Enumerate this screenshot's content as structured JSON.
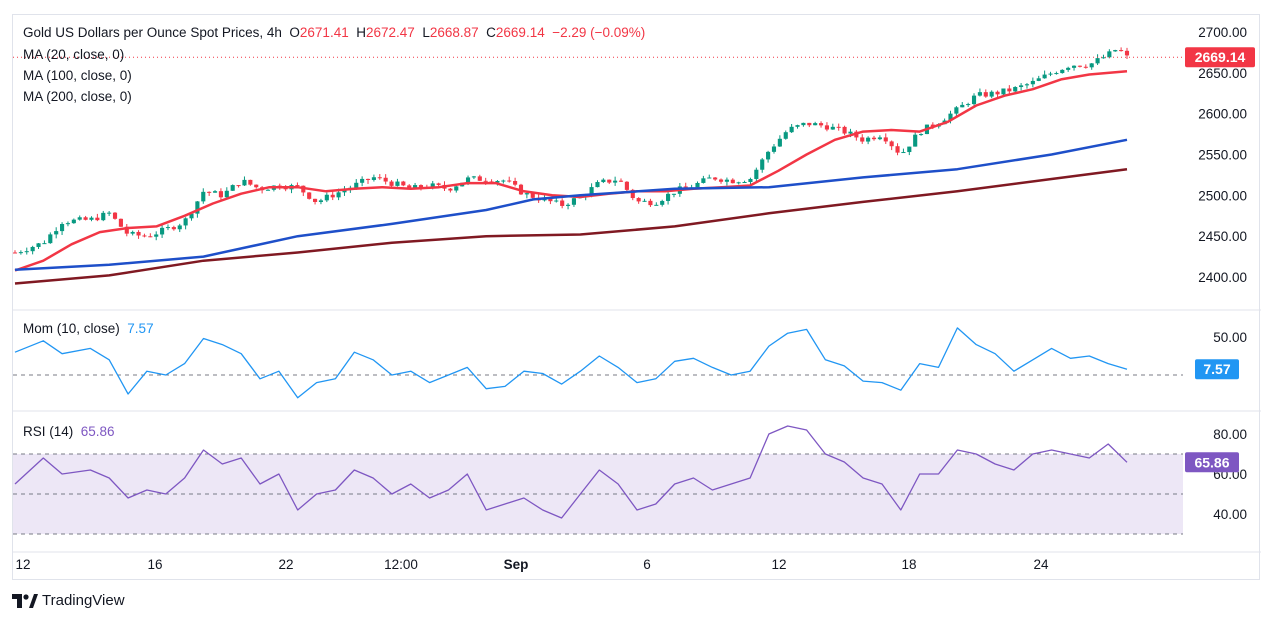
{
  "header": {
    "title": "Gold US Dollars per Ounce Spot Prices, 4h",
    "o_label": "O",
    "o_value": "2671.41",
    "h_label": "H",
    "h_value": "2672.47",
    "l_label": "L",
    "l_value": "2668.87",
    "c_label": "C",
    "c_value": "2669.14",
    "change": "−2.29 (−0.09%)"
  },
  "indicators": {
    "ma20": "MA (20, close, 0)",
    "ma100": "MA (100, close, 0)",
    "ma200": "MA (200, close, 0)",
    "mom_label": "Mom (10, close)",
    "mom_value": "7.57",
    "rsi_label": "RSI (14)",
    "rsi_value": "65.86"
  },
  "price_badge": "2669.14",
  "mom_badge": "7.57",
  "rsi_badge": "65.86",
  "colors": {
    "up": "#089981",
    "down": "#f23645",
    "ma20": "#f23645",
    "ma100": "#1e4fc9",
    "ma200": "#801922",
    "mom": "#2196f3",
    "rsi": "#7e57c2",
    "rsi_band": "#ede7f6"
  },
  "branding": "TradingView",
  "chart_data": [
    {
      "type": "candlestick",
      "title": "Gold US Dollars per Ounce Spot Prices, 4h",
      "ylim": [
        2385,
        2705
      ],
      "yticks": [
        "2700.00",
        "2650.00",
        "2600.00",
        "2550.00",
        "2500.00",
        "2450.00",
        "2400.00"
      ],
      "xticks": [
        "12",
        "16",
        "22",
        "12:00",
        "Sep",
        "6",
        "12",
        "18",
        "24"
      ],
      "last_close": 2669.14,
      "close_path": [
        [
          0,
          2430
        ],
        [
          3,
          2442
        ],
        [
          5,
          2468
        ],
        [
          8,
          2470
        ],
        [
          10,
          2478
        ],
        [
          12,
          2452
        ],
        [
          14,
          2450
        ],
        [
          16,
          2458
        ],
        [
          18,
          2468
        ],
        [
          20,
          2505
        ],
        [
          22,
          2500
        ],
        [
          24,
          2518
        ],
        [
          26,
          2508
        ],
        [
          28,
          2512
        ],
        [
          30,
          2510
        ],
        [
          32,
          2492
        ],
        [
          34,
          2502
        ],
        [
          36,
          2512
        ],
        [
          38,
          2522
        ],
        [
          40,
          2515
        ],
        [
          42,
          2508
        ],
        [
          44,
          2512
        ],
        [
          46,
          2508
        ],
        [
          48,
          2520
        ],
        [
          50,
          2520
        ],
        [
          52,
          2518
        ],
        [
          54,
          2502
        ],
        [
          56,
          2495
        ],
        [
          58,
          2488
        ],
        [
          60,
          2498
        ],
        [
          62,
          2515
        ],
        [
          64,
          2520
        ],
        [
          66,
          2492
        ],
        [
          68,
          2492
        ],
        [
          70,
          2505
        ],
        [
          72,
          2512
        ],
        [
          74,
          2522
        ],
        [
          76,
          2518
        ],
        [
          78,
          2520
        ],
        [
          80,
          2555
        ],
        [
          82,
          2580
        ],
        [
          84,
          2588
        ],
        [
          86,
          2585
        ],
        [
          88,
          2578
        ],
        [
          90,
          2568
        ],
        [
          92,
          2575
        ],
        [
          94,
          2550
        ],
        [
          96,
          2578
        ],
        [
          98,
          2590
        ],
        [
          100,
          2605
        ],
        [
          102,
          2622
        ],
        [
          104,
          2625
        ],
        [
          106,
          2630
        ],
        [
          108,
          2638
        ],
        [
          110,
          2650
        ],
        [
          112,
          2660
        ],
        [
          114,
          2660
        ],
        [
          116,
          2672
        ],
        [
          117,
          2680
        ],
        [
          118,
          2669
        ]
      ],
      "series": [
        {
          "name": "MA (20, close, 0)",
          "points": [
            [
              0,
              2408
            ],
            [
              3,
              2420
            ],
            [
              6,
              2440
            ],
            [
              9,
              2455
            ],
            [
              12,
              2460
            ],
            [
              15,
              2462
            ],
            [
              18,
              2475
            ],
            [
              21,
              2490
            ],
            [
              24,
              2502
            ],
            [
              27,
              2510
            ],
            [
              30,
              2510
            ],
            [
              33,
              2505
            ],
            [
              36,
              2508
            ],
            [
              39,
              2510
            ],
            [
              42,
              2508
            ],
            [
              45,
              2510
            ],
            [
              48,
              2515
            ],
            [
              51,
              2515
            ],
            [
              54,
              2505
            ],
            [
              57,
              2500
            ],
            [
              60,
              2498
            ],
            [
              63,
              2502
            ],
            [
              66,
              2505
            ],
            [
              69,
              2505
            ],
            [
              72,
              2508
            ],
            [
              75,
              2510
            ],
            [
              78,
              2512
            ],
            [
              81,
              2530
            ],
            [
              84,
              2550
            ],
            [
              87,
              2568
            ],
            [
              90,
              2578
            ],
            [
              93,
              2580
            ],
            [
              96,
              2578
            ],
            [
              99,
              2590
            ],
            [
              102,
              2610
            ],
            [
              105,
              2622
            ],
            [
              108,
              2630
            ],
            [
              111,
              2642
            ],
            [
              114,
              2648
            ],
            [
              118,
              2652
            ]
          ]
        },
        {
          "name": "MA (100, close, 0)",
          "points": [
            [
              0,
              2409
            ],
            [
              10,
              2415
            ],
            [
              20,
              2425
            ],
            [
              30,
              2450
            ],
            [
              40,
              2465
            ],
            [
              50,
              2482
            ],
            [
              55,
              2495
            ],
            [
              60,
              2500
            ],
            [
              70,
              2508
            ],
            [
              80,
              2510
            ],
            [
              90,
              2522
            ],
            [
              100,
              2532
            ],
            [
              110,
              2550
            ],
            [
              118,
              2568
            ]
          ]
        },
        {
          "name": "MA (200, close, 0)",
          "points": [
            [
              0,
              2392
            ],
            [
              10,
              2402
            ],
            [
              20,
              2420
            ],
            [
              30,
              2430
            ],
            [
              40,
              2442
            ],
            [
              50,
              2450
            ],
            [
              60,
              2452
            ],
            [
              70,
              2462
            ],
            [
              80,
              2478
            ],
            [
              90,
              2492
            ],
            [
              100,
              2505
            ],
            [
              110,
              2520
            ],
            [
              118,
              2532
            ]
          ]
        }
      ]
    },
    {
      "type": "line",
      "title": "Mom (10, close)",
      "yticks": [
        "50.00"
      ],
      "ylim": [
        -40,
        75
      ],
      "zero_line": 0,
      "series": [
        {
          "name": "Mom (10, close)",
          "points": [
            [
              0,
              30
            ],
            [
              3,
              45
            ],
            [
              5,
              28
            ],
            [
              8,
              35
            ],
            [
              10,
              20
            ],
            [
              12,
              -25
            ],
            [
              14,
              5
            ],
            [
              16,
              0
            ],
            [
              18,
              15
            ],
            [
              20,
              48
            ],
            [
              22,
              40
            ],
            [
              24,
              28
            ],
            [
              26,
              -5
            ],
            [
              28,
              5
            ],
            [
              30,
              -30
            ],
            [
              32,
              -10
            ],
            [
              34,
              -5
            ],
            [
              36,
              30
            ],
            [
              38,
              20
            ],
            [
              40,
              0
            ],
            [
              42,
              5
            ],
            [
              44,
              -10
            ],
            [
              46,
              0
            ],
            [
              48,
              10
            ],
            [
              50,
              -18
            ],
            [
              52,
              -15
            ],
            [
              54,
              5
            ],
            [
              56,
              2
            ],
            [
              58,
              -12
            ],
            [
              60,
              5
            ],
            [
              62,
              25
            ],
            [
              64,
              10
            ],
            [
              66,
              -10
            ],
            [
              68,
              -5
            ],
            [
              70,
              18
            ],
            [
              72,
              22
            ],
            [
              74,
              10
            ],
            [
              76,
              0
            ],
            [
              78,
              5
            ],
            [
              80,
              38
            ],
            [
              82,
              55
            ],
            [
              84,
              60
            ],
            [
              86,
              20
            ],
            [
              88,
              12
            ],
            [
              90,
              -8
            ],
            [
              92,
              -10
            ],
            [
              94,
              -20
            ],
            [
              96,
              15
            ],
            [
              98,
              10
            ],
            [
              100,
              62
            ],
            [
              102,
              40
            ],
            [
              104,
              28
            ],
            [
              106,
              5
            ],
            [
              108,
              20
            ],
            [
              110,
              35
            ],
            [
              112,
              22
            ],
            [
              114,
              25
            ],
            [
              116,
              15
            ],
            [
              118,
              7.57
            ]
          ]
        }
      ]
    },
    {
      "type": "line",
      "title": "RSI (14)",
      "yticks": [
        "80.00",
        "60.00",
        "40.00"
      ],
      "ylim": [
        27,
        88
      ],
      "bands": [
        70,
        50,
        30
      ],
      "series": [
        {
          "name": "RSI (14)",
          "points": [
            [
              0,
              55
            ],
            [
              3,
              68
            ],
            [
              5,
              60
            ],
            [
              8,
              62
            ],
            [
              10,
              58
            ],
            [
              12,
              48
            ],
            [
              14,
              52
            ],
            [
              16,
              50
            ],
            [
              18,
              58
            ],
            [
              20,
              72
            ],
            [
              22,
              65
            ],
            [
              24,
              68
            ],
            [
              26,
              55
            ],
            [
              28,
              60
            ],
            [
              30,
              42
            ],
            [
              32,
              50
            ],
            [
              34,
              52
            ],
            [
              36,
              62
            ],
            [
              38,
              58
            ],
            [
              40,
              50
            ],
            [
              42,
              55
            ],
            [
              44,
              48
            ],
            [
              46,
              52
            ],
            [
              48,
              60
            ],
            [
              50,
              42
            ],
            [
              52,
              45
            ],
            [
              54,
              48
            ],
            [
              56,
              42
            ],
            [
              58,
              38
            ],
            [
              60,
              50
            ],
            [
              62,
              62
            ],
            [
              64,
              55
            ],
            [
              66,
              42
            ],
            [
              68,
              45
            ],
            [
              70,
              55
            ],
            [
              72,
              58
            ],
            [
              74,
              52
            ],
            [
              76,
              55
            ],
            [
              78,
              58
            ],
            [
              80,
              80
            ],
            [
              82,
              84
            ],
            [
              84,
              82
            ],
            [
              86,
              70
            ],
            [
              88,
              66
            ],
            [
              90,
              58
            ],
            [
              92,
              55
            ],
            [
              94,
              42
            ],
            [
              96,
              60
            ],
            [
              98,
              60
            ],
            [
              100,
              72
            ],
            [
              102,
              70
            ],
            [
              104,
              65
            ],
            [
              106,
              62
            ],
            [
              108,
              70
            ],
            [
              110,
              72
            ],
            [
              112,
              70
            ],
            [
              114,
              68
            ],
            [
              116,
              75
            ],
            [
              118,
              65.86
            ]
          ]
        }
      ]
    }
  ]
}
